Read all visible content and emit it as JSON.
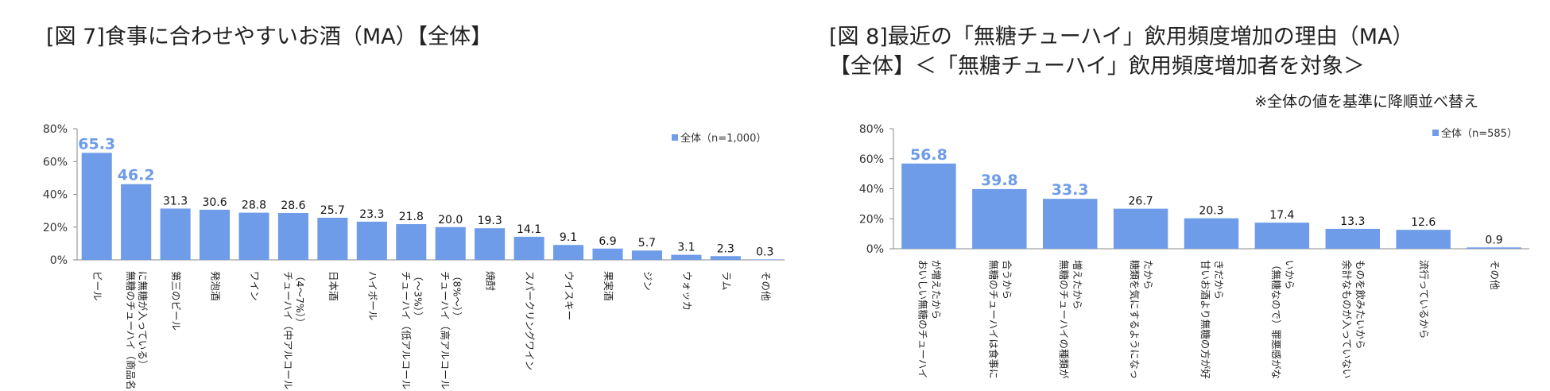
{
  "chart1": {
    "title": "[図 7]食事に合わせやすいお酒（MA）【全体】",
    "legend": "全体（n=1,000）",
    "y_ticks": [
      "0%",
      "20%",
      "40%",
      "60%",
      "80%"
    ],
    "bar_color": "#6e9ce8"
  },
  "chart2": {
    "title_line1": "[図 8]最近の「無糖チューハイ」飲用頻度増加の理由（MA）",
    "title_line2": "【全体】＜「無糖チューハイ」飲用頻度増加者を対象＞",
    "note": "※全体の値を基準に降順並べ替え",
    "legend": "全体（n=585）",
    "y_ticks": [
      "0%",
      "20%",
      "40%",
      "60%",
      "80%"
    ],
    "bar_color": "#6e9ce8"
  },
  "chart_data": [
    {
      "type": "bar",
      "title": "[図 7]食事に合わせやすいお酒（MA）【全体】",
      "series": [
        {
          "name": "全体（n=1,000）",
          "values": [
            65.3,
            46.2,
            31.3,
            30.6,
            28.8,
            28.6,
            25.7,
            23.3,
            21.8,
            20.0,
            19.3,
            14.1,
            9.1,
            6.9,
            5.7,
            3.1,
            2.3,
            0.3
          ]
        }
      ],
      "values": [
        65.3,
        46.2,
        31.3,
        30.6,
        28.8,
        28.6,
        25.7,
        23.3,
        21.8,
        20.0,
        19.3,
        14.1,
        9.1,
        6.9,
        5.7,
        3.1,
        2.3,
        0.3
      ],
      "value_labels": [
        "65.3",
        "46.2",
        "31.3",
        "30.6",
        "28.8",
        "28.6",
        "25.7",
        "23.3",
        "21.8",
        "20.0",
        "19.3",
        "14.1",
        "9.1",
        "6.9",
        "5.7",
        "3.1",
        "2.3",
        "0.3"
      ],
      "highlighted": [
        0,
        1
      ],
      "categories": [
        [
          "ビール"
        ],
        [
          "無糖のチューハイ（商品名",
          "に無糖が入っている）"
        ],
        [
          "第三のビール"
        ],
        [
          "発泡酒"
        ],
        [
          "ワイン"
        ],
        [
          "チューハイ（中アルコール",
          "（4～7%））"
        ],
        [
          "日本酒"
        ],
        [
          "ハイボール"
        ],
        [
          "チューハイ（低アルコール",
          "（～3%））"
        ],
        [
          "チューハイ（高アルコール",
          "（8%～））"
        ],
        [
          "焼酎"
        ],
        [
          "スパークリングワイン"
        ],
        [
          "ウイスキー"
        ],
        [
          "果実酒"
        ],
        [
          "ジン"
        ],
        [
          "ウォッカ"
        ],
        [
          "ラム"
        ],
        [
          "その他"
        ]
      ],
      "ylim": [
        0,
        80
      ],
      "legend_position": "top-right"
    },
    {
      "type": "bar",
      "title": "[図 8]最近の「無糖チューハイ」飲用頻度増加の理由（MA）【全体】＜「無糖チューハイ」飲用頻度増加者を対象＞",
      "series": [
        {
          "name": "全体（n=585）",
          "values": [
            56.8,
            39.8,
            33.3,
            26.7,
            20.3,
            17.4,
            13.3,
            12.6,
            0.9
          ]
        }
      ],
      "values": [
        56.8,
        39.8,
        33.3,
        26.7,
        20.3,
        17.4,
        13.3,
        12.6,
        0.9
      ],
      "value_labels": [
        "56.8",
        "39.8",
        "33.3",
        "26.7",
        "20.3",
        "17.4",
        "13.3",
        "12.6",
        "0.9"
      ],
      "highlighted": [
        0,
        1,
        2
      ],
      "categories": [
        [
          "おいしい無糖のチューハイ",
          "が増えたから"
        ],
        [
          "無糖のチューハイは食事に",
          "合うから"
        ],
        [
          "無糖のチューハイの種類が",
          "増えたから"
        ],
        [
          "糖類を気にするようになっ",
          "たから"
        ],
        [
          "甘いお酒より無糖の方が好",
          "きだから"
        ],
        [
          "（無糖なので）罪悪感がな",
          "いから"
        ],
        [
          "余計なものが入っていない",
          "ものを飲みたいから"
        ],
        [
          "流行っているから"
        ],
        [
          "その他"
        ]
      ],
      "ylim": [
        0,
        80
      ],
      "legend_position": "top-right"
    }
  ]
}
